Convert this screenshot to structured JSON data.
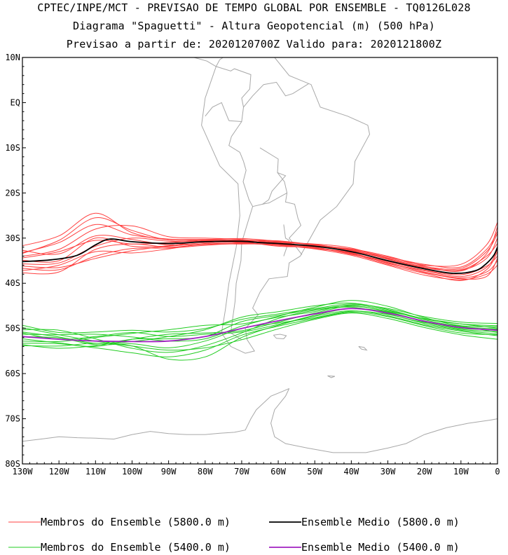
{
  "chart_data": {
    "type": "line",
    "title_lines": [
      "CPTEC/INPE/MCT - PREVISAO DE TEMPO GLOBAL POR ENSEMBLE - TQ0126L028",
      "Diagrama \"Spaguetti\" - Altura Geopotencial (m) (500 hPa)",
      "Previsao a partir de: 2020120700Z  Valido para: 2020121800Z"
    ],
    "xlim": [
      -130,
      0
    ],
    "ylim": [
      -80,
      10
    ],
    "x_ticks": [
      {
        "value": -130,
        "label": "130W"
      },
      {
        "value": -120,
        "label": "120W"
      },
      {
        "value": -110,
        "label": "110W"
      },
      {
        "value": -100,
        "label": "100W"
      },
      {
        "value": -90,
        "label": "90W"
      },
      {
        "value": -80,
        "label": "80W"
      },
      {
        "value": -70,
        "label": "70W"
      },
      {
        "value": -60,
        "label": "60W"
      },
      {
        "value": -50,
        "label": "50W"
      },
      {
        "value": -40,
        "label": "40W"
      },
      {
        "value": -30,
        "label": "30W"
      },
      {
        "value": -20,
        "label": "20W"
      },
      {
        "value": -10,
        "label": "10W"
      },
      {
        "value": 0,
        "label": "0"
      }
    ],
    "y_ticks": [
      {
        "value": 10,
        "label": "10N"
      },
      {
        "value": 0,
        "label": "EQ"
      },
      {
        "value": -10,
        "label": "10S"
      },
      {
        "value": -20,
        "label": "20S"
      },
      {
        "value": -30,
        "label": "30S"
      },
      {
        "value": -40,
        "label": "40S"
      },
      {
        "value": -50,
        "label": "50S"
      },
      {
        "value": -60,
        "label": "60S"
      },
      {
        "value": -70,
        "label": "70S"
      },
      {
        "value": -80,
        "label": "80S"
      }
    ],
    "colors": {
      "members_5800": "#ff4040",
      "mean_5800": "#000000",
      "members_5400": "#22cc22",
      "mean_5400": "#a020c0",
      "coast": "#a8a8a8"
    },
    "legend": [
      {
        "label": "Membros do Ensemble (5800.0 m)",
        "color": "#ff4040"
      },
      {
        "label": "Ensemble Medio (5800.0 m)",
        "color": "#000000"
      },
      {
        "label": "Membros do Ensemble (5400.0 m)",
        "color": "#22cc22"
      },
      {
        "label": "Ensemble Medio (5400.0 m)",
        "color": "#a020c0"
      }
    ],
    "series": [
      {
        "group": "mean_5800",
        "x": [
          -130,
          -122,
          -115,
          -110,
          -106,
          -100,
          -90,
          -80,
          -70,
          -65,
          -60,
          -50,
          -40,
          -30,
          -20,
          -12,
          -6,
          -3,
          -1,
          0
        ],
        "y": [
          -35.2,
          -34.8,
          -33.8,
          -31.5,
          -30.2,
          -30.8,
          -31.2,
          -30.8,
          -30.7,
          -31.0,
          -31.2,
          -31.8,
          -33.0,
          -35.0,
          -36.8,
          -37.8,
          -37.2,
          -35.6,
          -33.8,
          -32.0
        ]
      },
      {
        "group": "mean_5400",
        "x": [
          -130,
          -120,
          -110,
          -100,
          -90,
          -80,
          -70,
          -60,
          -50,
          -40,
          -30,
          -20,
          -10,
          0
        ],
        "y": [
          -51.8,
          -52.4,
          -52.8,
          -52.9,
          -52.8,
          -51.8,
          -50.0,
          -48.3,
          -46.8,
          -45.6,
          -46.6,
          -48.4,
          -49.8,
          -50.4
        ]
      }
    ],
    "members_5800": {
      "x": [
        -130,
        -120,
        -110,
        -100,
        -90,
        -80,
        -70,
        -60,
        -50,
        -40,
        -30,
        -20,
        -10,
        -3,
        0
      ],
      "base": [
        -35.2,
        -34.5,
        -31.0,
        -30.8,
        -31.2,
        -30.8,
        -30.7,
        -31.2,
        -31.8,
        -33.0,
        -35.0,
        -36.8,
        -37.6,
        -35.0,
        -32.0
      ],
      "offsets": [
        [
          2.0,
          3.5,
          4.0,
          1.5,
          1.0,
          0.5,
          0.6,
          0.5,
          0.3,
          0.5,
          0.8,
          1.0,
          1.2,
          2.5,
          3.5
        ],
        [
          -1.5,
          -2.5,
          -3.0,
          -1.5,
          -1.0,
          -0.8,
          -0.5,
          -0.4,
          -0.6,
          -0.8,
          -1.0,
          -1.4,
          -1.6,
          -3.0,
          -4.0
        ],
        [
          3.5,
          5.0,
          6.5,
          2.0,
          0.8,
          0.4,
          0.3,
          0.4,
          0.2,
          0.3,
          0.6,
          0.8,
          1.8,
          3.5,
          5.5
        ],
        [
          -2.0,
          -1.5,
          -2.0,
          -2.5,
          -1.2,
          -0.4,
          -0.2,
          -0.6,
          -0.3,
          -0.5,
          -0.8,
          -1.0,
          -1.8,
          -2.0,
          -1.0
        ],
        [
          0.8,
          1.5,
          0.5,
          -0.5,
          0.2,
          0.3,
          -0.1,
          0.2,
          0.5,
          0.8,
          0.5,
          0.2,
          0.6,
          1.0,
          0.8
        ],
        [
          -0.5,
          -1.0,
          -0.8,
          0.8,
          0.5,
          0.1,
          0.3,
          0.0,
          -0.2,
          -0.4,
          -0.2,
          -0.3,
          -0.5,
          -1.2,
          -2.0
        ],
        [
          1.2,
          2.0,
          3.0,
          3.5,
          1.5,
          0.8,
          0.4,
          0.2,
          0.4,
          0.2,
          0.4,
          0.5,
          0.9,
          2.0,
          3.0
        ],
        [
          -1.0,
          -2.0,
          -3.5,
          -2.0,
          -0.6,
          -0.5,
          -0.4,
          -0.3,
          -0.5,
          -0.3,
          -0.5,
          -0.7,
          -1.2,
          -2.5,
          -3.0
        ],
        [
          2.5,
          1.0,
          1.5,
          0.5,
          -0.3,
          -0.2,
          0.2,
          -0.3,
          0.1,
          0.6,
          1.0,
          0.6,
          0.3,
          1.5,
          4.5
        ],
        [
          0.3,
          -0.5,
          1.0,
          -1.0,
          -0.5,
          0.2,
          -0.3,
          0.3,
          -0.4,
          -0.2,
          -0.6,
          -0.4,
          -0.9,
          -1.5,
          -0.5
        ],
        [
          1.8,
          4.0,
          5.5,
          2.5,
          0.8,
          0.5,
          0.2,
          0.6,
          0.3,
          0.4,
          0.3,
          0.3,
          0.5,
          0.5,
          2.0
        ],
        [
          -2.5,
          -3.0,
          -1.5,
          -0.5,
          -0.8,
          -0.6,
          -0.6,
          -0.2,
          -0.3,
          -0.6,
          -0.4,
          -0.8,
          -1.4,
          -3.5,
          -2.5
        ]
      ]
    },
    "members_5400": {
      "x": [
        -130,
        -120,
        -110,
        -100,
        -90,
        -80,
        -70,
        -60,
        -50,
        -40,
        -30,
        -20,
        -10,
        0
      ],
      "base": [
        -51.8,
        -52.4,
        -52.8,
        -52.9,
        -52.8,
        -51.8,
        -50.0,
        -48.3,
        -46.8,
        -45.6,
        -46.6,
        -48.4,
        -49.8,
        -50.4
      ],
      "offsets": [
        [
          2.5,
          1.5,
          2.0,
          2.5,
          2.0,
          1.8,
          2.0,
          1.5,
          1.2,
          1.0,
          1.0,
          1.0,
          1.2,
          1.5
        ],
        [
          -1.5,
          -1.0,
          -1.5,
          -2.5,
          -3.5,
          -3.0,
          -1.5,
          -1.2,
          -1.0,
          -0.8,
          -0.8,
          -1.0,
          -1.2,
          -1.0
        ],
        [
          1.0,
          0.5,
          -0.5,
          0.0,
          1.0,
          1.5,
          2.5,
          2.0,
          1.8,
          1.2,
          0.8,
          0.5,
          0.8,
          1.0
        ],
        [
          -2.0,
          -1.5,
          -0.5,
          -1.0,
          -4.0,
          -4.5,
          -2.0,
          -1.0,
          -0.5,
          -0.5,
          -0.6,
          -0.8,
          -0.8,
          -1.2
        ],
        [
          0.5,
          1.0,
          1.5,
          1.0,
          0.0,
          -0.5,
          0.5,
          1.0,
          1.5,
          1.8,
          1.5,
          0.8,
          0.4,
          0.8
        ],
        [
          -0.5,
          -0.8,
          -1.2,
          0.5,
          1.5,
          0.8,
          -0.5,
          -0.3,
          0.2,
          0.5,
          0.3,
          -0.2,
          -0.4,
          -0.3
        ],
        [
          1.5,
          2.0,
          0.5,
          -1.5,
          -2.5,
          -2.0,
          -1.0,
          0.5,
          0.8,
          0.3,
          -0.2,
          -0.5,
          -0.6,
          -0.8
        ],
        [
          -1.0,
          -0.5,
          0.8,
          1.8,
          2.5,
          2.5,
          1.0,
          0.8,
          0.5,
          0.8,
          0.6,
          0.3,
          0.2,
          0.3
        ],
        [
          0.0,
          0.3,
          -0.8,
          -0.5,
          -1.5,
          -1.0,
          0.0,
          -0.5,
          -0.8,
          -0.6,
          -0.3,
          -0.3,
          0.3,
          -0.5
        ],
        [
          2.0,
          1.0,
          0.0,
          -1.0,
          -2.0,
          -2.5,
          -2.5,
          -1.8,
          -1.2,
          -1.0,
          -1.2,
          -1.4,
          -1.6,
          -2.0
        ],
        [
          -1.8,
          -2.0,
          -1.0,
          0.5,
          0.5,
          0.0,
          1.5,
          1.2,
          1.0,
          0.6,
          0.4,
          0.6,
          0.8,
          0.5
        ],
        [
          0.8,
          0.0,
          1.0,
          2.0,
          1.0,
          0.5,
          -0.8,
          -0.8,
          -0.3,
          0.0,
          0.2,
          0.0,
          -0.2,
          0.2
        ]
      ]
    }
  }
}
